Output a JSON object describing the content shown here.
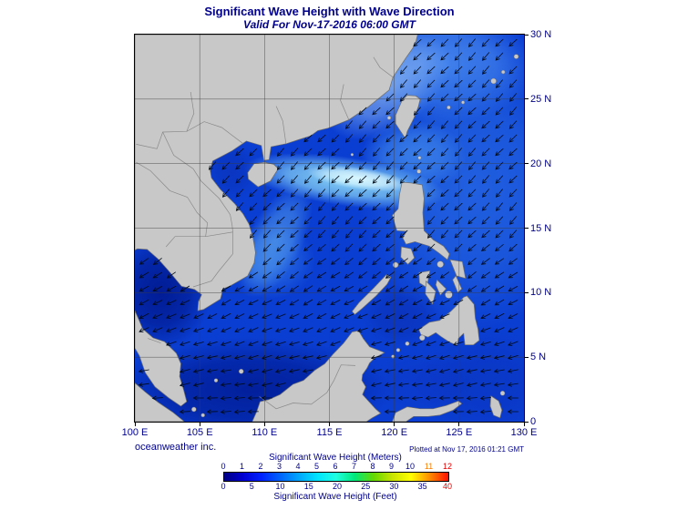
{
  "header": {
    "title": "Significant Wave Height with Wave Direction",
    "subtitle": "Valid For Nov-17-2016 06:00 GMT"
  },
  "map": {
    "lat_labels": [
      "30 N",
      "25 N",
      "20 N",
      "15 N",
      "10 N",
      "5 N",
      "0"
    ],
    "lon_labels": [
      "100 E",
      "105 E",
      "110 E",
      "115 E",
      "120 E",
      "125 E",
      "130 E"
    ]
  },
  "footer": {
    "credit": "oceanweather inc.",
    "plotted": "Plotted at Nov 17, 2016 01:21 GMT"
  },
  "colorbar": {
    "meters_label": "Significant Wave Height (Meters)",
    "feet_label": "Significant Wave Height (Feet)",
    "meters_ticks": [
      "0",
      "1",
      "2",
      "3",
      "4",
      "5",
      "6",
      "7",
      "8",
      "9",
      "10",
      "11",
      "12"
    ],
    "meters_tick_colors": [
      "#00008B",
      "#00008B",
      "#00008B",
      "#00008B",
      "#00008B",
      "#00008B",
      "#00008B",
      "#00008B",
      "#00008B",
      "#00008B",
      "#00008B",
      "#ff7f00",
      "#e80000"
    ],
    "feet_ticks": [
      "0",
      "5",
      "10",
      "15",
      "20",
      "25",
      "30",
      "35",
      "40"
    ],
    "feet_tick_colors": [
      "#00008B",
      "#00008B",
      "#00008B",
      "#00008B",
      "#00008B",
      "#00008B",
      "#00008B",
      "#00008B",
      "#e80000"
    ],
    "gradient_colors": [
      "#000082",
      "#0000d2",
      "#0022ff",
      "#0064ff",
      "#00a6ff",
      "#00e4ff",
      "#20ffe0",
      "#00e87a",
      "#66d800",
      "#c8e400",
      "#ffff00",
      "#ff8c00",
      "#ff0f00"
    ]
  },
  "chart_data": {
    "type": "heatmap",
    "title": "Significant Wave Height with Wave Direction",
    "valid_time": "Nov-17-2016 06:00 GMT",
    "plotted_time": "Nov 17, 2016 01:21 GMT",
    "region": {
      "lon_range_deg_east": [
        100,
        130
      ],
      "lat_range_deg_north": [
        0,
        30
      ],
      "lon_gridlines_deg": [
        100,
        105,
        110,
        115,
        120,
        125,
        130
      ],
      "lat_gridlines_deg": [
        0,
        5,
        10,
        15,
        20,
        25,
        30
      ]
    },
    "scale_meters": [
      0,
      1,
      2,
      3,
      4,
      5,
      6,
      7,
      8,
      9,
      10,
      11,
      12
    ],
    "scale_feet": [
      0,
      5,
      10,
      15,
      20,
      25,
      30,
      35,
      40
    ],
    "wave_direction_summary": "Arrows point toward the southwest over most of the domain, trending more westward near the equator",
    "estimated_heights_m": [
      {
        "lon": 116,
        "lat": 18.5,
        "hs": 4.0
      },
      {
        "lon": 112,
        "lat": 19.5,
        "hs": 3.0
      },
      {
        "lon": 120,
        "lat": 18.0,
        "hs": 3.5
      },
      {
        "lon": 110,
        "lat": 13.0,
        "hs": 2.5
      },
      {
        "lon": 113,
        "lat": 8.0,
        "hs": 2.0
      },
      {
        "lon": 103,
        "lat": 10.0,
        "hs": 0.5
      },
      {
        "lon": 125,
        "lat": 20.0,
        "hs": 2.0
      },
      {
        "lon": 126,
        "lat": 10.0,
        "hs": 1.5
      },
      {
        "lon": 122,
        "lat": 27.0,
        "hs": 2.0
      },
      {
        "lon": 106,
        "lat": 4.0,
        "hs": 0.8
      }
    ]
  }
}
